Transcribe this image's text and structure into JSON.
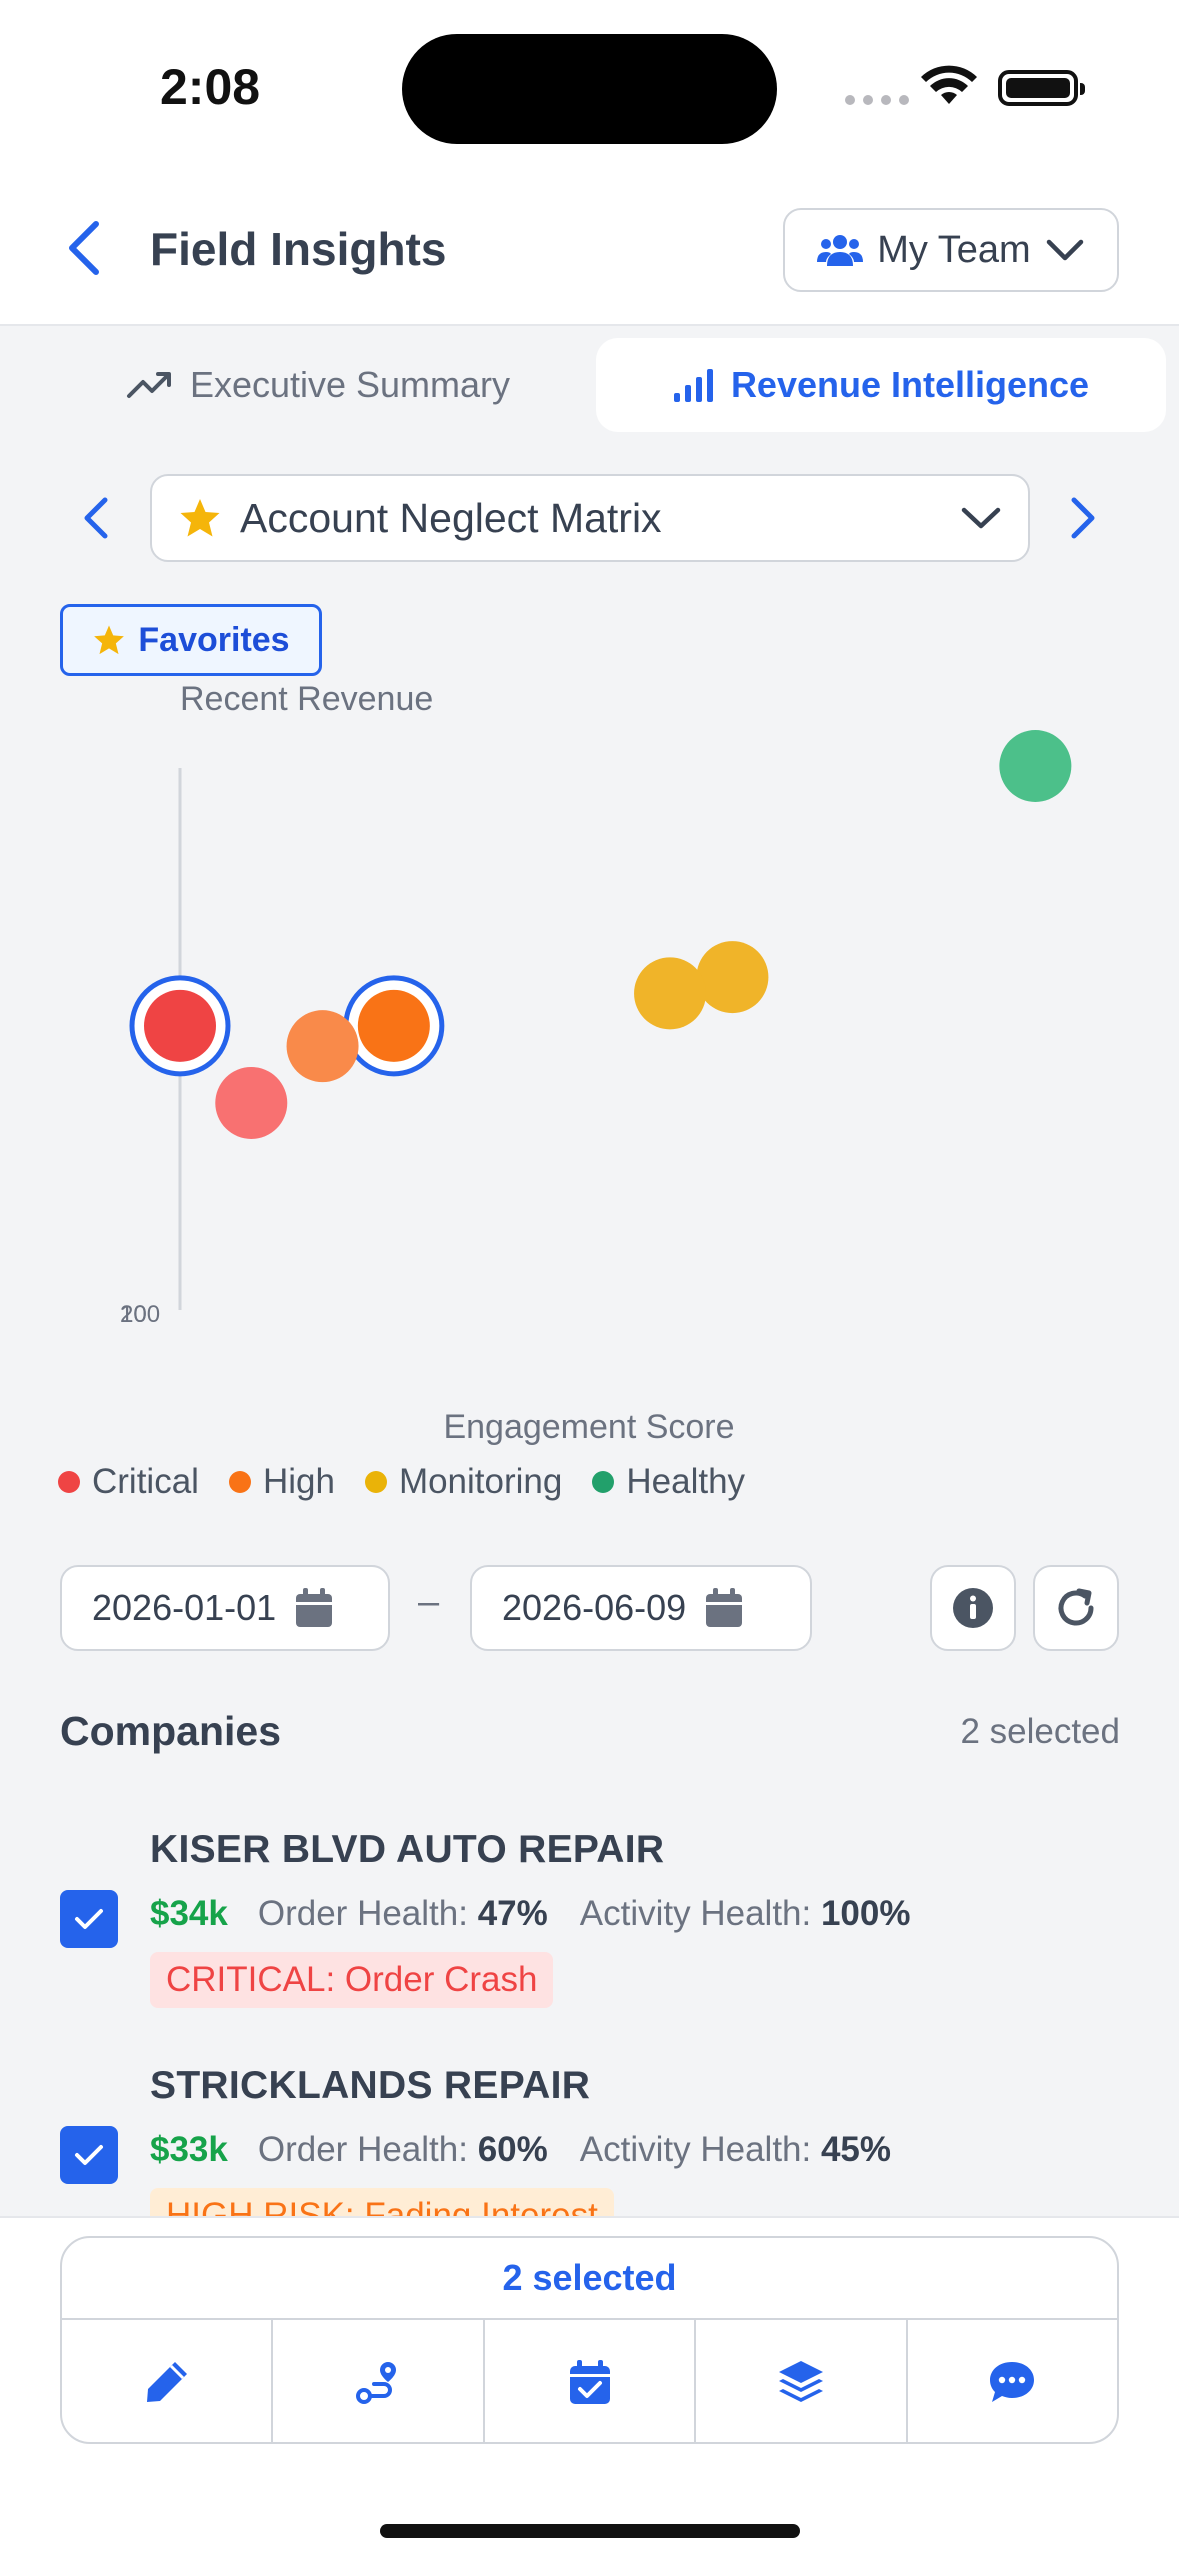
{
  "status_bar": {
    "time": "2:08"
  },
  "nav": {
    "title": "Field Insights",
    "team_selector": "My Team"
  },
  "tabs": [
    {
      "label": "Executive Summary",
      "icon": "trend-up-icon",
      "active": false
    },
    {
      "label": "Revenue Intelligence",
      "icon": "signal-bars-icon",
      "active": true
    }
  ],
  "report_selector": {
    "label": "Account Neglect Matrix",
    "icon": "star-icon"
  },
  "favorites_button": "Favorites",
  "chart_data": {
    "type": "scatter",
    "ylabel": "Recent Revenue",
    "xlabel": "Engagement Score",
    "y_tick_labels": [
      "100",
      "20"
    ],
    "legend": [
      {
        "name": "Critical",
        "color": "#ef4444"
      },
      {
        "name": "High",
        "color": "#f97316"
      },
      {
        "name": "Monitoring",
        "color": "#f0b429"
      },
      {
        "name": "Healthy",
        "color": "#3cba7d"
      }
    ],
    "xlim": [
      0,
      100
    ],
    "ylim": [
      0,
      100
    ],
    "points": [
      {
        "x": 96,
        "y": 100,
        "category": "Healthy",
        "color": "#4cc08a",
        "selected": false
      },
      {
        "x": 62,
        "y": 48,
        "category": "Monitoring",
        "color": "#f0b429",
        "selected": false
      },
      {
        "x": 55,
        "y": 44,
        "category": "Monitoring",
        "color": "#f0b429",
        "selected": false
      },
      {
        "x": 0,
        "y": 36,
        "category": "Critical",
        "color": "#ef4444",
        "selected": true
      },
      {
        "x": 24,
        "y": 36,
        "category": "High",
        "color": "#f97316",
        "selected": true
      },
      {
        "x": 16,
        "y": 31,
        "category": "High",
        "color": "#f98a4a",
        "selected": false
      },
      {
        "x": 8,
        "y": 17,
        "category": "Critical",
        "color": "#f87171",
        "selected": false
      }
    ]
  },
  "date_range": {
    "start": "2026-01-01",
    "end": "2026-06-09",
    "separator": "–"
  },
  "companies": {
    "title": "Companies",
    "selected_count": "2 selected",
    "items": [
      {
        "name": "KISER BLVD AUTO REPAIR",
        "revenue": "$34k",
        "order_health_label": "Order Health:",
        "order_health": "47%",
        "activity_health_label": "Activity Health:",
        "activity_health": "100%",
        "badge": "CRITICAL: Order Crash",
        "badge_type": "critical",
        "checked": true
      },
      {
        "name": "STRICKLANDS REPAIR",
        "revenue": "$33k",
        "order_health_label": "Order Health:",
        "order_health": "60%",
        "activity_health_label": "Activity Health:",
        "activity_health": "45%",
        "badge": "HIGH RISK: Fading Interest",
        "badge_type": "high",
        "checked": true
      }
    ]
  },
  "action_bar": {
    "selected_label": "2 selected",
    "actions": [
      "pencil-icon",
      "route-icon",
      "calendar-check-icon",
      "layers-icon",
      "chat-icon"
    ]
  },
  "colors": {
    "accent": "#2563eb",
    "critical": "#ef4444",
    "high": "#f97316",
    "monitoring": "#f0b429",
    "healthy": "#3cba7d",
    "revenue": "#16a34a"
  }
}
